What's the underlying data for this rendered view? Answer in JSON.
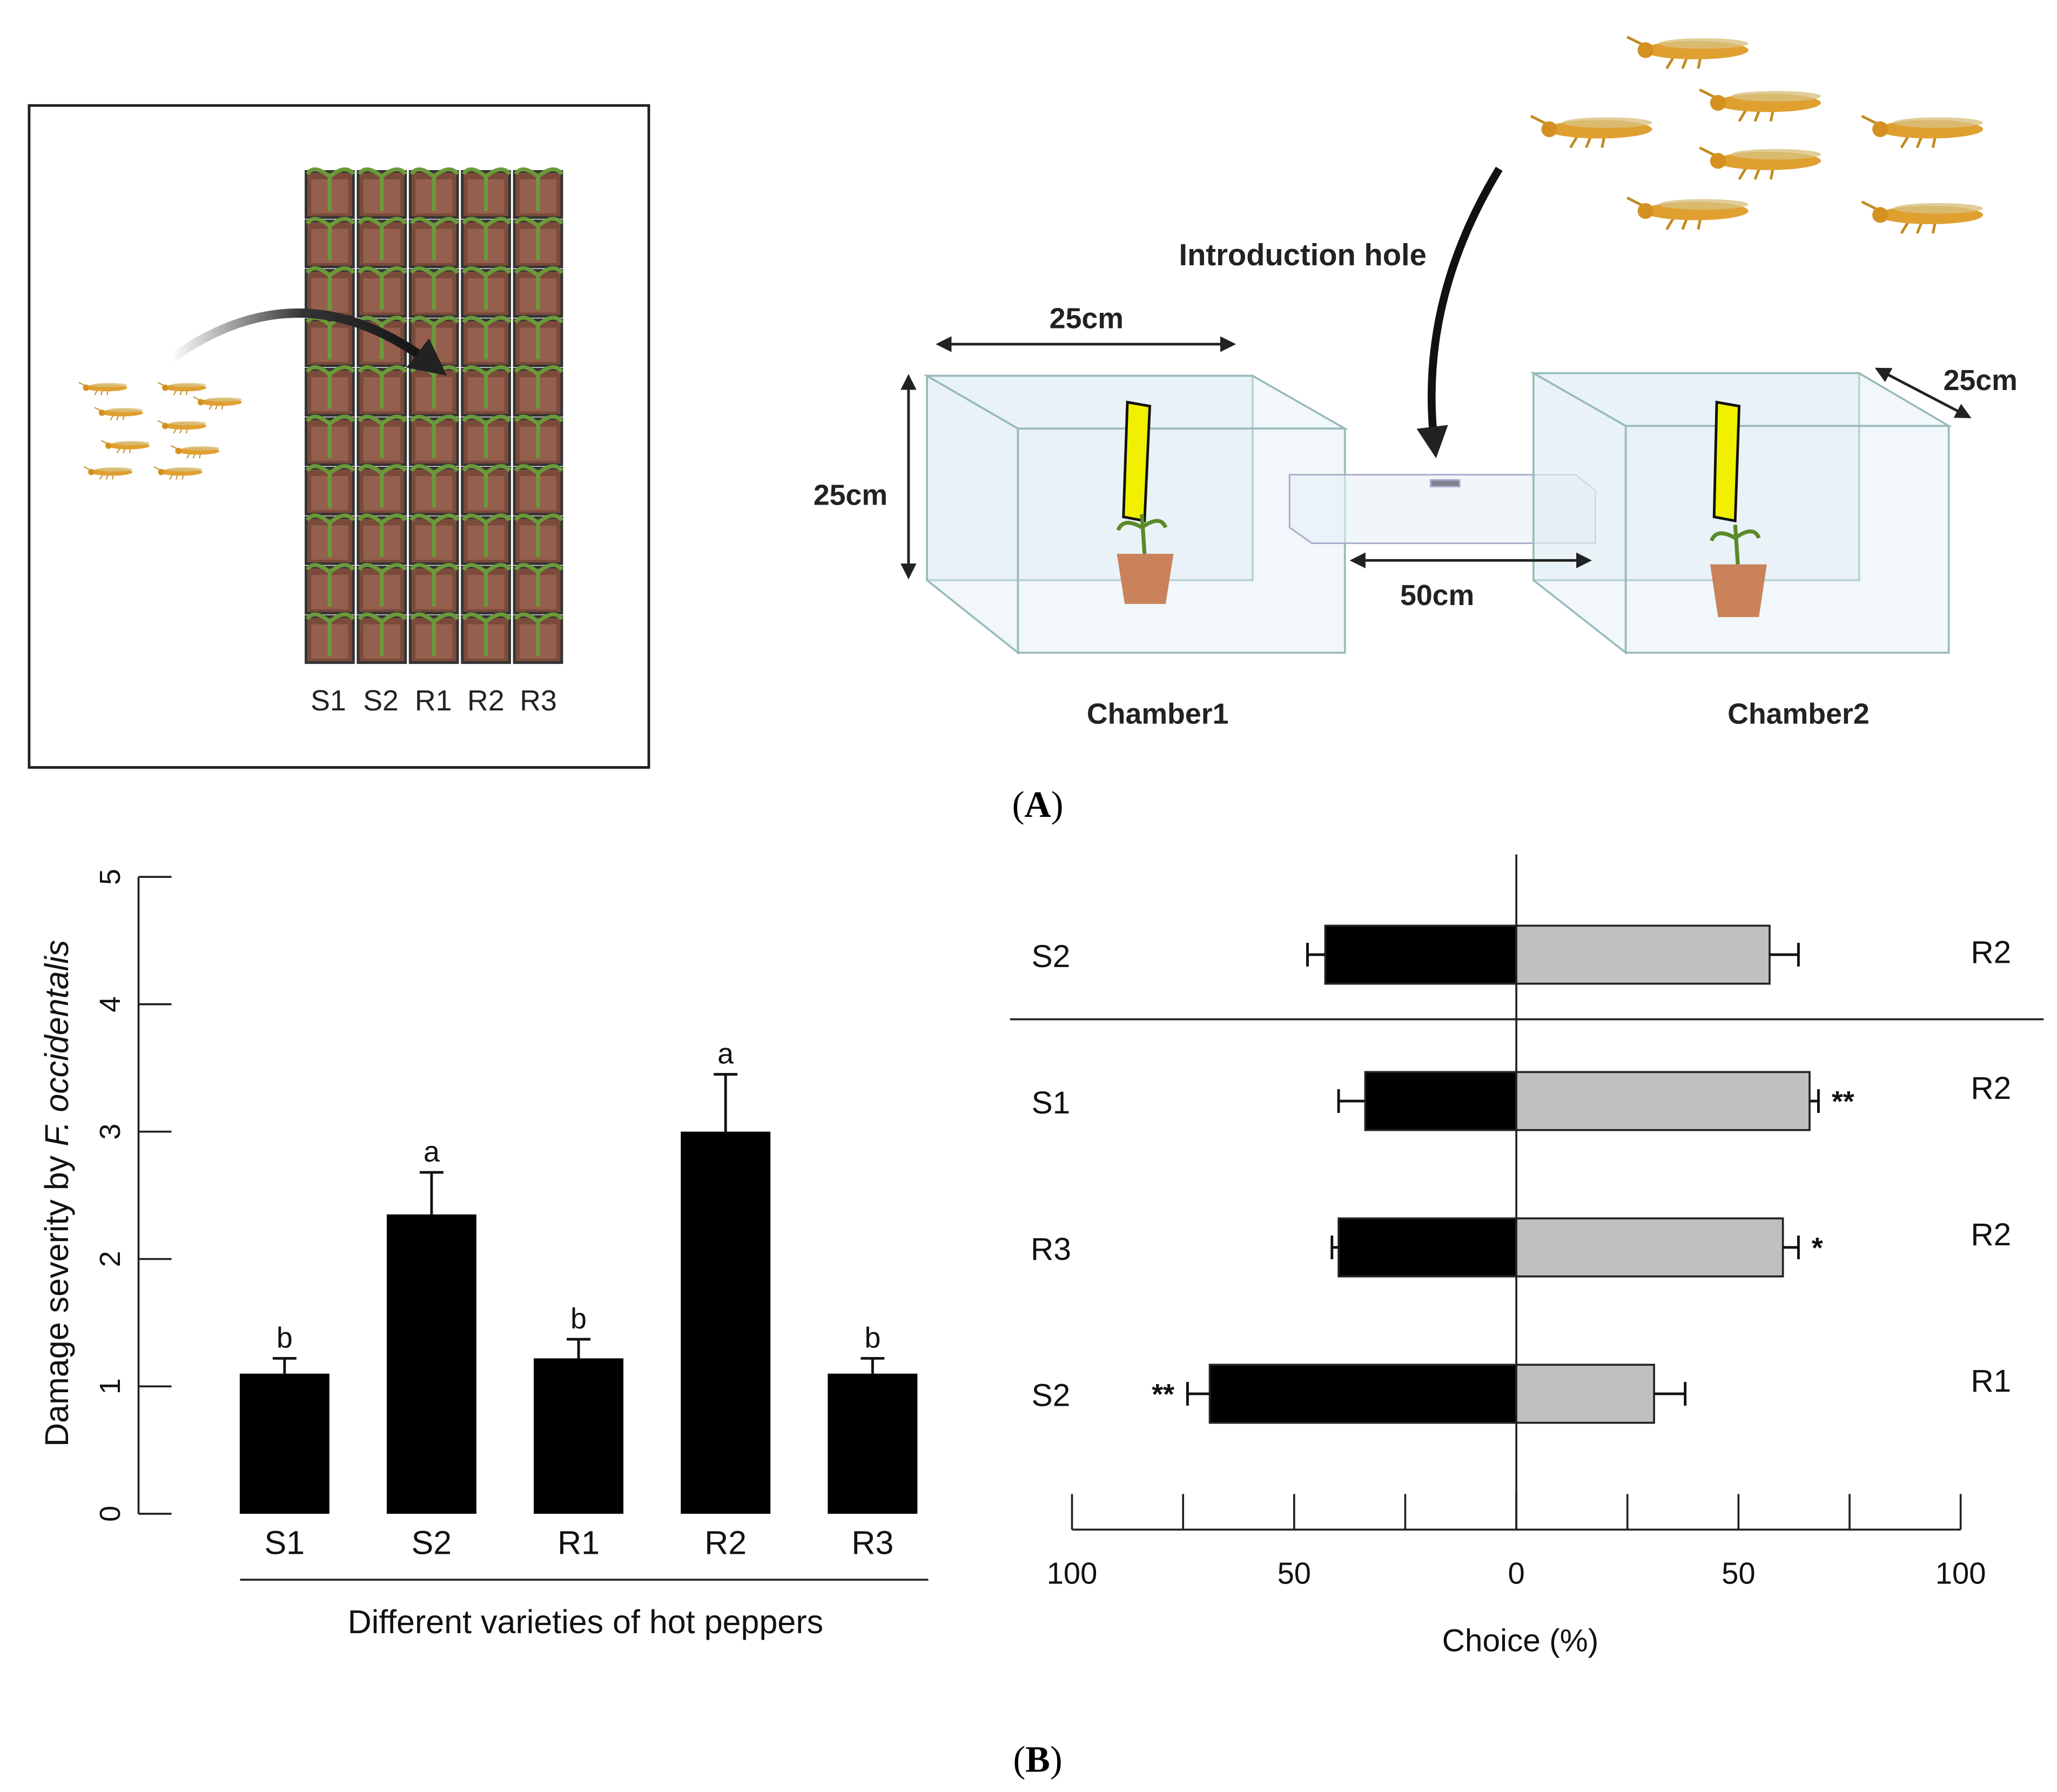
{
  "panel_labels": [
    [
      "(",
      "A",
      ")"
    ],
    [
      "(",
      "B",
      ")"
    ]
  ],
  "panel_a": {
    "tray_labels": [
      "S1",
      "S2",
      "R1",
      "R2",
      "R3"
    ],
    "introduction_hole": "Introduction hole",
    "dimension_labels": [
      "25cm",
      "25cm",
      "25cm",
      "50cm"
    ],
    "chamber_labels": [
      "Chamber1",
      "Chamber2"
    ]
  },
  "chart_data": [
    {
      "type": "bar",
      "ylabel": [
        "Damage severity by ",
        "F. occidentalis"
      ],
      "xlabel": "Different varieties of hot peppers",
      "categories": [
        "S1",
        "S2",
        "R1",
        "R2",
        "R3"
      ],
      "values": [
        1.1,
        2.35,
        1.22,
        3.0,
        1.1
      ],
      "errors": [
        0.12,
        0.33,
        0.15,
        0.45,
        0.12
      ],
      "annotations": [
        "b",
        "a",
        "b",
        "a",
        "b"
      ],
      "color": "#000000",
      "ylim": [
        0,
        5
      ],
      "yticks": [
        0,
        1,
        2,
        3,
        4,
        5
      ]
    },
    {
      "type": "diverging_bar",
      "xlabel": "Choice (%)",
      "left_labels": [
        "S2",
        "S1",
        "R3",
        "S2"
      ],
      "right_labels": [
        "R2",
        "R2",
        "R2",
        "R1"
      ],
      "series": [
        {
          "color": "#000000",
          "values": [
            -43,
            -34,
            -40,
            -69
          ],
          "errors": [
            4,
            6,
            1.5,
            5
          ],
          "annotations": [
            null,
            null,
            null,
            "**"
          ]
        },
        {
          "color": "#c0c0c0",
          "values": [
            57,
            66,
            60,
            31
          ],
          "errors": [
            6.5,
            2,
            3.5,
            7
          ],
          "annotations": [
            null,
            "**",
            "*",
            null
          ]
        }
      ],
      "xlim": [
        -100,
        100
      ],
      "xticks": [
        {
          "value": -100,
          "label": "100"
        },
        {
          "value": -50,
          "label": "50"
        },
        0,
        50,
        100
      ],
      "minor_xticks": [
        -75,
        -25,
        25,
        75
      ]
    }
  ]
}
